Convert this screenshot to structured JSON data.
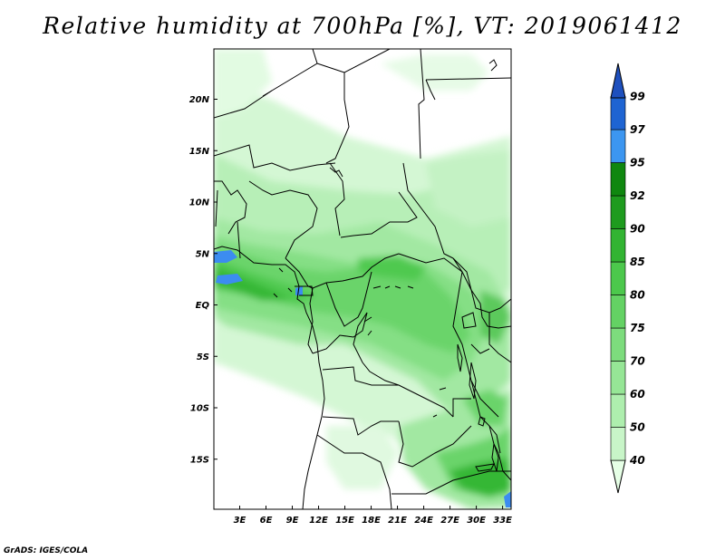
{
  "title": "Relative humidity at 700hPa [%], VT: 2019061412",
  "credit": "GrADS: IGES/COLA",
  "map": {
    "lat_ticks": [
      "20N",
      "15N",
      "10N",
      "5N",
      "EQ",
      "5S",
      "10S",
      "15S"
    ],
    "lat_values": [
      20,
      15,
      10,
      5,
      0,
      -5,
      -10,
      -15
    ],
    "lon_ticks": [
      "3E",
      "6E",
      "9E",
      "12E",
      "15E",
      "18E",
      "21E",
      "24E",
      "27E",
      "30E",
      "33E"
    ],
    "lon_values": [
      3,
      6,
      9,
      12,
      15,
      18,
      21,
      24,
      27,
      30,
      33
    ]
  },
  "colorbar": {
    "labels": [
      "40",
      "50",
      "60",
      "70",
      "75",
      "80",
      "85",
      "90",
      "92",
      "95",
      "97",
      "99"
    ],
    "colors": [
      "#e6ffe6",
      "#c8f5c8",
      "#aeeeae",
      "#96e696",
      "#7ddc7d",
      "#64d264",
      "#4cc84c",
      "#32b432",
      "#1e9b1e",
      "#0f870f",
      "#3c96f0",
      "#1e64d2",
      "#1e50be"
    ]
  }
}
